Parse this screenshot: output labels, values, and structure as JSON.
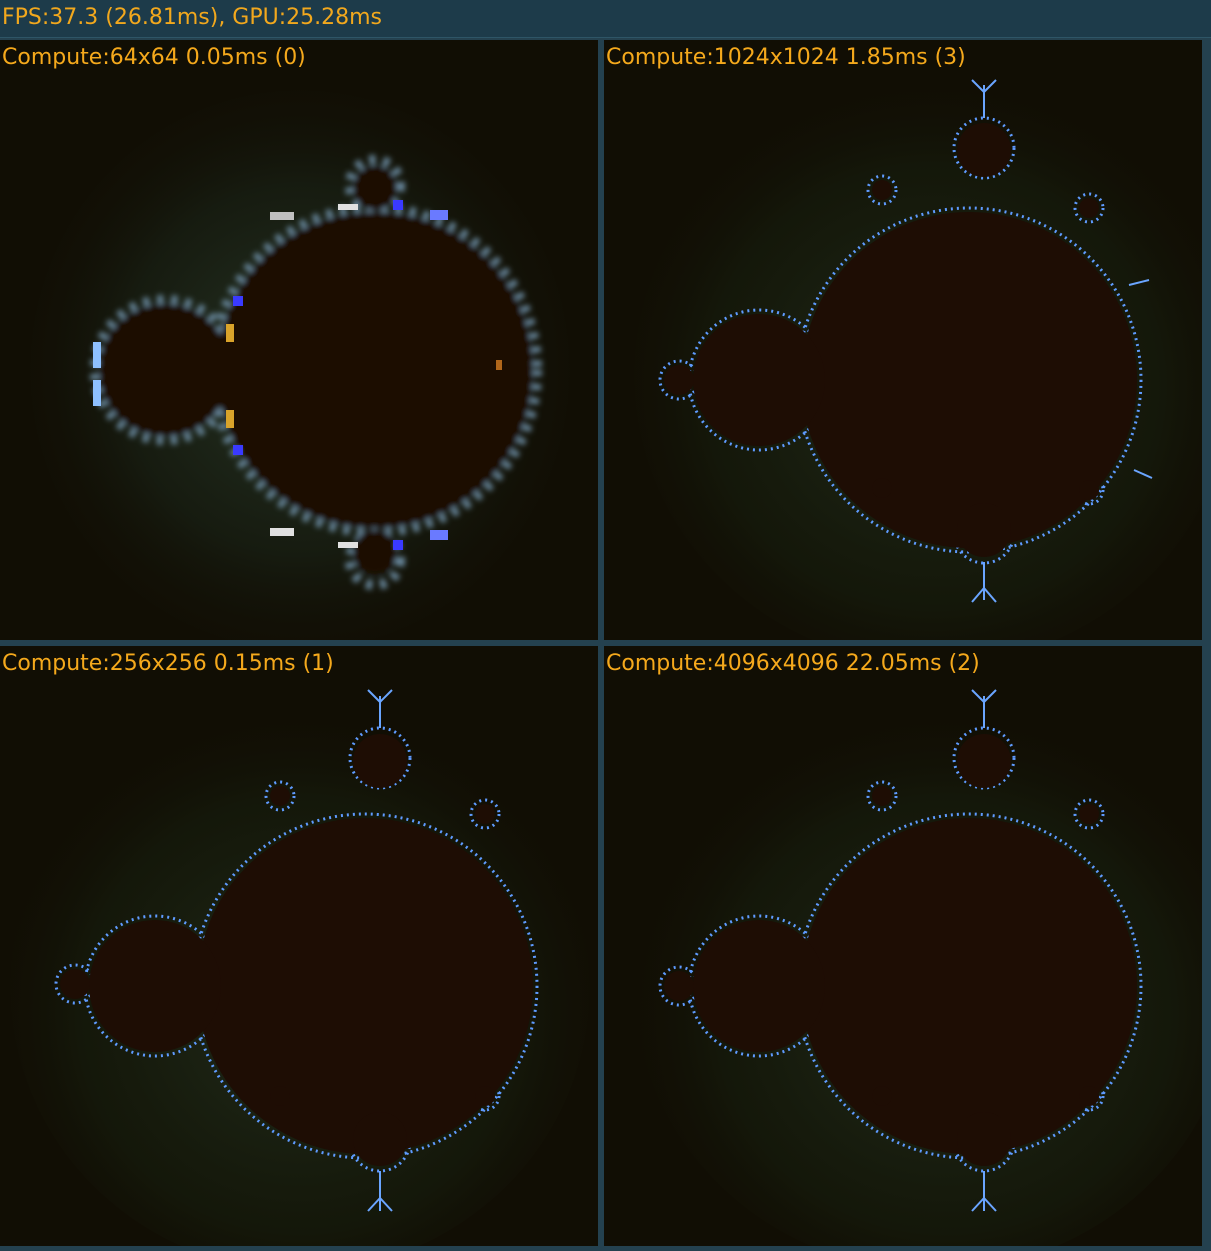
{
  "header": {
    "title": "FPS:37.3 (26.81ms), GPU:25.28ms"
  },
  "panels": [
    {
      "label": "Compute:64x64 0.05ms (0)"
    },
    {
      "label": "Compute:1024x1024 1.85ms (3)"
    },
    {
      "label": "Compute:256x256 0.15ms (1)"
    },
    {
      "label": "Compute:4096x4096 22.05ms (2)"
    }
  ],
  "colors": {
    "text": "#f5a91c",
    "set_interior": "#1e0d04",
    "edge": "#6aa5ff",
    "background": "#110e04",
    "frame": "#24414f"
  }
}
